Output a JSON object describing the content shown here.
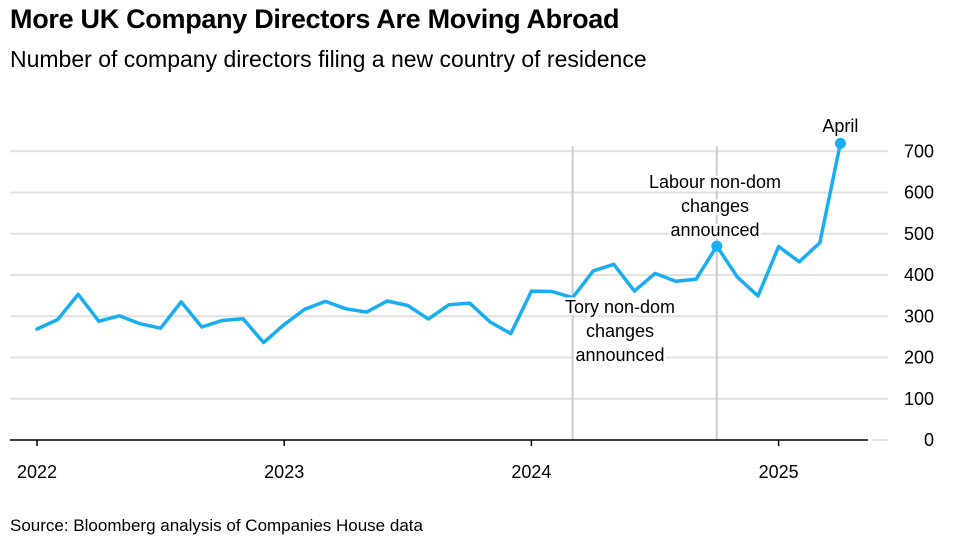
{
  "title": "More UK Company Directors Are Moving Abroad",
  "subtitle": "Number of company directors filing a new country of residence",
  "source": "Source: Bloomberg analysis of Companies House data",
  "colors": {
    "line": "#1aaef1",
    "grid": "#e1e1e1",
    "event_line": "#cccccc",
    "axis": "#000000"
  },
  "chart_data": {
    "type": "line",
    "title": "More UK Company Directors Are Moving Abroad",
    "subtitle": "Number of company directors filing a new country of residence",
    "xlabel": "",
    "ylabel": "",
    "ylim": [
      0,
      750
    ],
    "yticks": [
      0,
      100,
      200,
      300,
      400,
      500,
      600,
      700
    ],
    "y_axis_side": "right",
    "grid": true,
    "xticks": [
      {
        "label": "2022",
        "date": "2022-01"
      },
      {
        "label": "2023",
        "date": "2023-01"
      },
      {
        "label": "2024",
        "date": "2024-01"
      },
      {
        "label": "2025",
        "date": "2025-01"
      }
    ],
    "series": [
      {
        "name": "",
        "x": [
          "2022-01",
          "2022-02",
          "2022-03",
          "2022-04",
          "2022-05",
          "2022-06",
          "2022-07",
          "2022-08",
          "2022-09",
          "2022-10",
          "2022-11",
          "2022-12",
          "2023-01",
          "2023-02",
          "2023-03",
          "2023-04",
          "2023-05",
          "2023-06",
          "2023-07",
          "2023-08",
          "2023-09",
          "2023-10",
          "2023-11",
          "2023-12",
          "2024-01",
          "2024-02",
          "2024-03",
          "2024-04",
          "2024-05",
          "2024-06",
          "2024-07",
          "2024-08",
          "2024-09",
          "2024-10",
          "2024-11",
          "2024-12",
          "2025-01",
          "2025-02",
          "2025-03",
          "2025-04"
        ],
        "values": [
          269,
          292,
          353,
          288,
          301,
          282,
          271,
          335,
          274,
          290,
          294,
          236,
          280,
          317,
          336,
          318,
          310,
          337,
          326,
          293,
          328,
          332,
          286,
          258,
          361,
          360,
          345,
          410,
          426,
          361,
          404,
          385,
          390,
          470,
          395,
          349,
          469,
          432,
          478,
          719
        ]
      }
    ],
    "markers": [
      {
        "date": "2024-10",
        "value": 470
      },
      {
        "date": "2025-04",
        "value": 719
      }
    ],
    "event_lines": [
      {
        "date": "2024-03",
        "lines": [
          "Tory non-dom",
          "changes",
          "announced"
        ]
      },
      {
        "date": "2024-10",
        "lines": [
          "Labour non-dom",
          "changes",
          "announced"
        ]
      }
    ],
    "annotations": [
      {
        "text": "April",
        "date": "2025-04",
        "value": 719
      }
    ]
  }
}
